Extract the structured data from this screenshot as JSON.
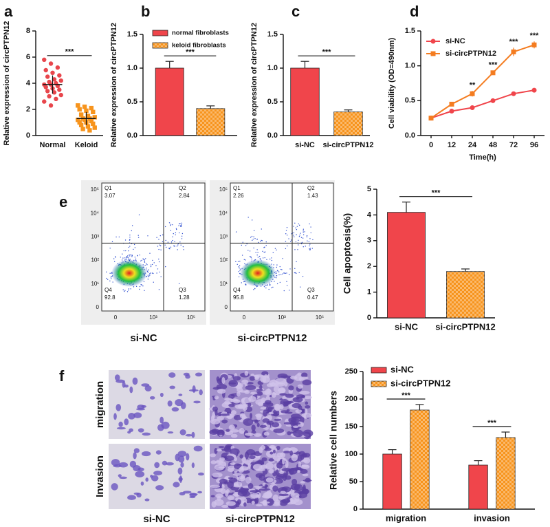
{
  "figure": {
    "flow": {
      "plots": [
        {
          "caption": "si-NC",
          "quadrants": [
            [
              "Q1",
              "3.07"
            ],
            [
              "Q2",
              "2.84"
            ],
            [
              "Q4",
              "92.8"
            ],
            [
              "Q3",
              "1.28"
            ]
          ]
        },
        {
          "caption": "si-circPTPN12",
          "quadrants": [
            [
              "Q1",
              "2.26"
            ],
            [
              "Q2",
              "1.43"
            ],
            [
              "Q4",
              "95.8"
            ],
            [
              "Q3",
              "0.47"
            ]
          ]
        }
      ],
      "y_ticks": [
        "10⁵",
        "10⁴",
        "10³",
        "10²",
        "10¹",
        "0"
      ],
      "x_ticks": [
        "0",
        "10³",
        "10⁵"
      ]
    },
    "micrographs": {
      "rows": [
        "migration",
        "Invasion"
      ],
      "columns": [
        "si-NC",
        "si-circPTPN12"
      ]
    }
  },
  "chart_data": [
    {
      "panel": "a",
      "type": "dot",
      "ylabel": "Relative expression of circPTPN12",
      "categories": [
        "Normal",
        "Keloid"
      ],
      "values": [
        [
          5.8,
          5.5,
          5.2,
          5.0,
          4.8,
          4.6,
          4.5,
          4.3,
          4.2,
          4.1,
          4.0,
          3.9,
          3.9,
          3.8,
          3.7,
          3.6,
          3.5,
          3.4,
          3.3,
          3.1,
          3.0,
          2.8,
          2.6,
          2.3
        ],
        [
          2.3,
          2.2,
          2.1,
          2.0,
          1.9,
          1.8,
          1.6,
          1.5,
          1.4,
          1.3,
          1.3,
          1.2,
          1.2,
          1.1,
          1.0,
          1.0,
          0.9,
          0.8,
          0.7,
          0.6,
          0.5,
          0.4
        ]
      ],
      "means": [
        3.9,
        1.3
      ],
      "sds": [
        0.7,
        0.5
      ],
      "colors": [
        "#e8464c",
        "#f7941d"
      ],
      "markers": [
        "circle",
        "square"
      ],
      "ylim": [
        0,
        8
      ],
      "yticks": [
        0,
        2,
        4,
        6,
        8
      ],
      "annotations": [
        {
          "text": "***"
        }
      ]
    },
    {
      "panel": "b",
      "type": "bar",
      "ylabel": "Relative expression of circPTPN12",
      "categories": [
        null
      ],
      "series": [
        {
          "name": "normal fibroblasts",
          "color": "#f0454b",
          "values": [
            1.0
          ],
          "errors": [
            0.1
          ]
        },
        {
          "name": "keloid fibroblasts",
          "color": "#f7941d",
          "values": [
            0.4
          ],
          "errors": [
            0.04
          ]
        }
      ],
      "hatch": "#f7941d",
      "ylim": [
        0,
        1.5
      ],
      "yticks": [
        {
          "value": 0,
          "label": "0.0"
        },
        0.5,
        {
          "value": 1,
          "label": "1.0"
        },
        1.5
      ],
      "annotations": [
        {
          "text": "***"
        }
      ]
    },
    {
      "panel": "c",
      "type": "bar",
      "ylabel": "Relative expression of circPTPN12",
      "categories": [
        "si-NC",
        "si-circPTPN12"
      ],
      "series": [
        {
          "values": [
            1.0,
            0.35
          ],
          "errors": [
            0.1,
            0.03
          ]
        }
      ],
      "colors": [
        "#f0454b",
        "#f7941d"
      ],
      "hatch": "#f7941d",
      "ylim": [
        0,
        1.5
      ],
      "yticks": [
        {
          "value": 0,
          "label": "0.0"
        },
        0.5,
        {
          "value": 1,
          "label": "1.0"
        },
        1.5
      ],
      "annotations": [
        {
          "text": "***"
        }
      ]
    },
    {
      "panel": "d",
      "type": "line",
      "ylabel": "Cell viability (OD=490nm)",
      "xlabel": "Time(h)",
      "categories": [
        "0",
        "12",
        "24",
        "48",
        "72",
        "96"
      ],
      "series": [
        {
          "name": "si-NC",
          "color": "#f0454b",
          "marker": "circle",
          "values": [
            0.25,
            0.35,
            0.4,
            0.5,
            0.6,
            0.65
          ],
          "errors": [
            0.01,
            0.01,
            0.01,
            0.02,
            0.02,
            0.03
          ]
        },
        {
          "name": "si-circPTPN12",
          "color": "#f47c20",
          "marker": "square",
          "values": [
            0.25,
            0.45,
            0.6,
            0.9,
            1.2,
            1.3
          ],
          "errors": [
            0.01,
            0.02,
            0.04,
            0.03,
            0.06,
            0.05
          ]
        }
      ],
      "ylim": [
        0,
        1.5
      ],
      "yticks": [
        {
          "value": 0,
          "label": "0.0"
        },
        0.5,
        {
          "value": 1,
          "label": "1.0"
        },
        1.5
      ],
      "annotations": [
        {
          "text": "**"
        },
        {
          "text": "***"
        },
        {
          "text": "***"
        },
        {
          "text": "***"
        }
      ]
    },
    {
      "panel": "e",
      "type": "bar",
      "ylabel": "Cell apoptosis(%)",
      "categories": [
        "si-NC",
        "si-circPTPN12"
      ],
      "series": [
        {
          "values": [
            4.1,
            1.8
          ],
          "errors": [
            0.4,
            0.1
          ]
        }
      ],
      "colors": [
        "#f0454b",
        "#f7941d"
      ],
      "hatch": "#f7941d",
      "ylim": [
        0,
        5
      ],
      "yticks": [
        0,
        1,
        2,
        3,
        4,
        5
      ],
      "annotations": [
        {
          "text": "***"
        }
      ]
    },
    {
      "panel": "f",
      "type": "bar",
      "ylabel": "Relative cell numbers",
      "categories": [
        "migration",
        "invasion"
      ],
      "series": [
        {
          "name": "si-NC",
          "color": "#f0454b",
          "values": [
            100,
            80
          ],
          "errors": [
            8,
            8
          ]
        },
        {
          "name": "si-circPTPN12",
          "color": "#f7941d",
          "values": [
            180,
            130
          ],
          "errors": [
            10,
            10
          ]
        }
      ],
      "hatch": "#f7941d",
      "ylim": [
        0,
        250
      ],
      "yticks": [
        0,
        50,
        100,
        150,
        200,
        250
      ],
      "annotations": [
        {
          "text": "***"
        },
        {
          "text": "***"
        }
      ]
    }
  ]
}
